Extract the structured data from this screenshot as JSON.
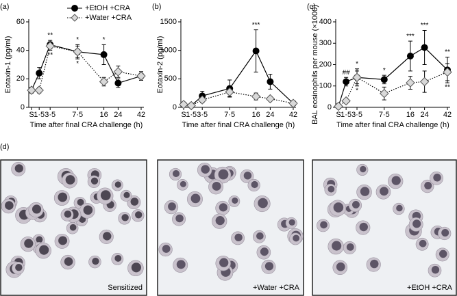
{
  "chart_data": [
    {
      "type": "line",
      "panel_label": "(a)",
      "y_label": "Eotaxin-1 (pg/ml)",
      "x_label": "Time after final CRA challenge (h)",
      "categories": [
        "S",
        "1·5",
        "3·5",
        "7·5",
        "16",
        "24",
        "42"
      ],
      "ylim": [
        0,
        60
      ],
      "yticks": [
        0,
        20,
        40,
        60
      ],
      "legend": "top",
      "series": [
        {
          "name": "+EtOH +CRA",
          "color": "#000000",
          "marker": "circle",
          "line_style": "solid",
          "values": [
            12,
            24,
            44,
            39,
            37,
            17,
            22
          ],
          "errors": [
            2,
            4,
            3,
            5,
            7,
            3,
            3
          ]
        },
        {
          "name": "+Water +CRA",
          "color": "#d9d9d9",
          "marker": "diamond",
          "line_style": "dotted",
          "values": [
            12,
            12,
            43,
            39,
            18,
            25,
            22
          ],
          "errors": [
            2,
            2,
            3,
            4,
            3,
            4,
            3
          ]
        }
      ],
      "annotations_above": [
        null,
        null,
        "**",
        "*",
        "*",
        null,
        null
      ],
      "annotations_below": [
        null,
        null,
        "**",
        "*",
        null,
        null,
        null
      ]
    },
    {
      "type": "line",
      "panel_label": "(b)",
      "y_label": "Eotaxin-2 (pg/ml)",
      "x_label": "Time after final CRA challenge (h)",
      "categories": [
        "S",
        "1·5",
        "3·5",
        "7·5",
        "16",
        "24",
        "42"
      ],
      "ylim": [
        0,
        1500
      ],
      "yticks": [
        0,
        500,
        1000,
        1500
      ],
      "series": [
        {
          "color": "#000000",
          "marker": "circle",
          "line_style": "solid",
          "values": [
            50,
            30,
            200,
            330,
            990,
            450,
            70
          ],
          "errors": [
            40,
            30,
            80,
            150,
            370,
            130,
            20
          ]
        },
        {
          "color": "#d9d9d9",
          "marker": "diamond",
          "line_style": "dotted",
          "values": [
            50,
            30,
            130,
            270,
            190,
            150,
            70
          ],
          "errors": [
            30,
            20,
            50,
            80,
            60,
            40,
            20
          ]
        }
      ],
      "annotations_above": [
        null,
        null,
        null,
        null,
        "***",
        null,
        null
      ],
      "annotations_below": [
        null,
        null,
        null,
        null,
        null,
        null,
        null
      ]
    },
    {
      "type": "line",
      "panel_label": "(c)",
      "y_label": "BAL eosinophils per mouse (×1000)",
      "x_label": "Time after final CRA challenge (h)",
      "categories": [
        "S",
        "1·5",
        "3·5",
        "7·5",
        "16",
        "24",
        "42"
      ],
      "ylim": [
        0,
        400
      ],
      "yticks": [
        0,
        100,
        200,
        300,
        400
      ],
      "series": [
        {
          "color": "#000000",
          "marker": "circle",
          "line_style": "solid",
          "values": [
            5,
            120,
            140,
            130,
            240,
            280,
            175
          ],
          "errors": [
            5,
            20,
            40,
            20,
            70,
            80,
            60
          ]
        },
        {
          "color": "#d9d9d9",
          "marker": "diamond",
          "line_style": "dotted",
          "values": [
            5,
            30,
            140,
            65,
            115,
            120,
            165
          ],
          "errors": [
            5,
            10,
            30,
            30,
            30,
            50,
            40
          ]
        }
      ],
      "annotations_above": [
        null,
        "##",
        "*",
        "*",
        "***",
        "***",
        "**"
      ],
      "annotations_below": [
        null,
        null,
        "*",
        null,
        null,
        null,
        "**"
      ]
    }
  ],
  "panel_d": {
    "label": "(d)",
    "images": [
      "Sensitized",
      "+Water +CRA",
      "+EtOH +CRA"
    ]
  }
}
